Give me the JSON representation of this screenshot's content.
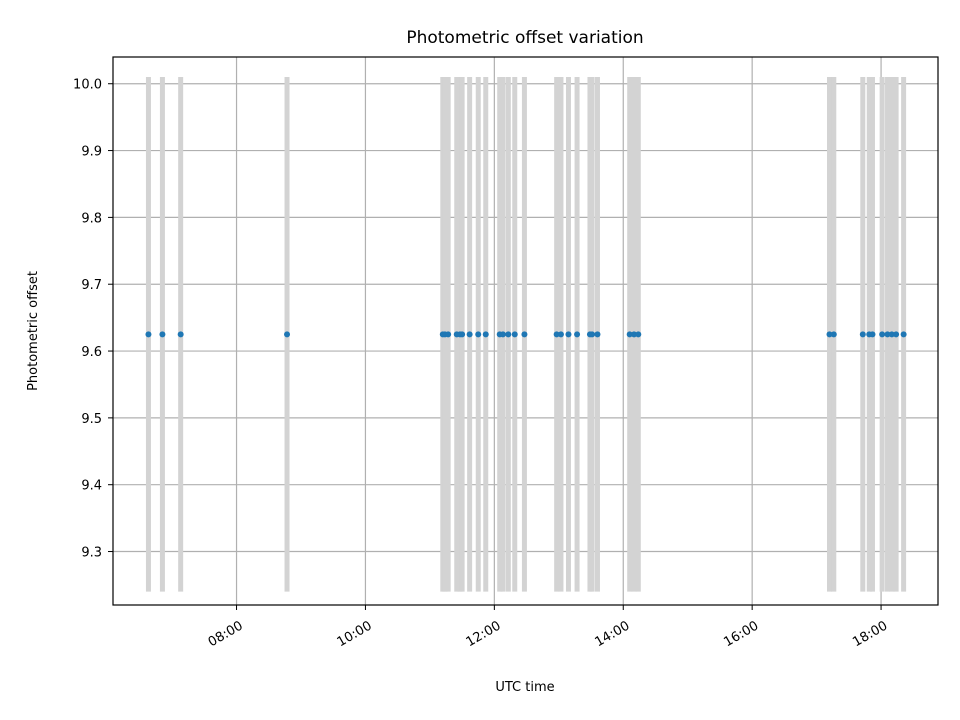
{
  "chart_data": {
    "type": "scatter",
    "title": "Photometric offset variation",
    "xlabel": "UTC time",
    "ylabel": "Photometric offset",
    "x_tick_labels": [
      "08:00",
      "10:00",
      "12:00",
      "14:00",
      "16:00",
      "18:00"
    ],
    "y_tick_labels": [
      "9.3",
      "9.4",
      "9.5",
      "9.6",
      "9.7",
      "9.8",
      "9.9",
      "10.0"
    ],
    "x_ticks": [
      "08:00",
      "10:00",
      "12:00",
      "14:00",
      "16:00",
      "18:00"
    ],
    "y_ticks": [
      9.3,
      9.4,
      9.5,
      9.6,
      9.7,
      9.8,
      9.9,
      10.0
    ],
    "xlim": [
      "06:05",
      "18:53"
    ],
    "ylim": [
      9.22,
      10.04
    ],
    "grid": true,
    "y_value": 9.625,
    "band_range": [
      9.24,
      10.01
    ],
    "series": [
      {
        "marker": "point",
        "color": "#1f77b4",
        "x": [
          "06:38",
          "06:51",
          "07:08",
          "08:47",
          "11:12",
          "11:14",
          "11:17",
          "11:25",
          "11:28",
          "11:30",
          "11:37",
          "11:45",
          "11:52",
          "12:05",
          "12:08",
          "12:13",
          "12:19",
          "12:28",
          "12:58",
          "13:02",
          "13:09",
          "13:17",
          "13:29",
          "13:31",
          "13:36",
          "14:06",
          "14:10",
          "14:14",
          "17:12",
          "17:16",
          "17:43",
          "17:49",
          "17:52",
          "18:01",
          "18:06",
          "18:10",
          "18:14",
          "18:21"
        ],
        "y": [
          9.625,
          9.625,
          9.625,
          9.625,
          9.625,
          9.625,
          9.625,
          9.625,
          9.625,
          9.625,
          9.625,
          9.625,
          9.625,
          9.625,
          9.625,
          9.625,
          9.625,
          9.625,
          9.625,
          9.625,
          9.625,
          9.625,
          9.625,
          9.625,
          9.625,
          9.625,
          9.625,
          9.625,
          9.625,
          9.625,
          9.625,
          9.625,
          9.625,
          9.625,
          9.625,
          9.625,
          9.625,
          9.625
        ]
      }
    ],
    "colors": {
      "band": "#d3d3d3",
      "grid": "#b0b0b0",
      "axes": "#000000",
      "point": "#1f77b4"
    }
  }
}
